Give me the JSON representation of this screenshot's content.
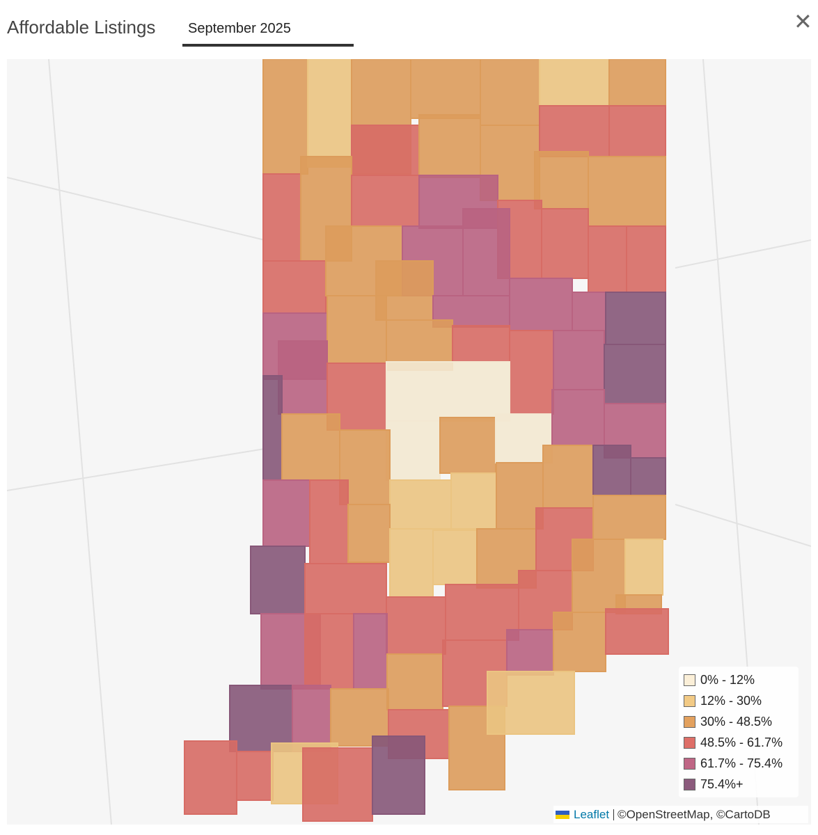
{
  "header": {
    "title": "Affordable Listings",
    "period": "September 2025"
  },
  "legend": {
    "items": [
      {
        "label": "0% - 12%",
        "color": "#fbefd8"
      },
      {
        "label": "12% - 30%",
        "color": "#f2ca85"
      },
      {
        "label": "30% - 48.5%",
        "color": "#e3a15e"
      },
      {
        "label": "48.5% - 61.7%",
        "color": "#de6f68"
      },
      {
        "label": "61.7% - 75.4%",
        "color": "#bf6685"
      },
      {
        "label": "75.4%+",
        "color": "#8b5a7c"
      }
    ]
  },
  "attribution": {
    "library": "Leaflet",
    "credits": "©OpenStreetMap, ©CartoDB"
  }
}
